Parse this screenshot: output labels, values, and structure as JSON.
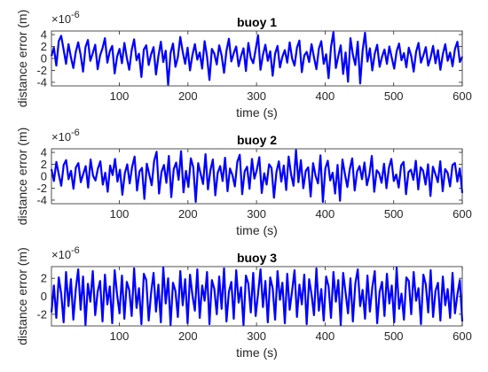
{
  "chart_data": [
    {
      "type": "line",
      "title": "buoy 1",
      "xlabel": "time (s)",
      "ylabel": "distance error (m)",
      "y_multiplier_label": "×10",
      "y_multiplier_exponent": "-6",
      "xlim": [
        1,
        600
      ],
      "ylim": [
        -4.6,
        4.6
      ],
      "xticks": [
        100,
        200,
        300,
        400,
        500,
        600
      ],
      "yticks": [
        -4,
        -2,
        0,
        2,
        4
      ],
      "xtick_labels": [
        "100",
        "200",
        "300",
        "400",
        "500",
        "600"
      ],
      "ytick_labels": [
        "-4",
        "-2",
        "0",
        "2",
        "4"
      ],
      "grid": false,
      "line_color": "#0000ff",
      "series": [
        {
          "values": [
            0.4,
            1.8,
            -1.2,
            2.9,
            3.8,
            1.5,
            -0.9,
            2.4,
            0.2,
            -1.6,
            1.1,
            2.7,
            0.6,
            -2.2,
            1.9,
            3.1,
            -0.4,
            0.9,
            2.3,
            -1.8,
            0.5,
            1.7,
            3.4,
            -0.7,
            1.2,
            2.1,
            -2.5,
            0.3,
            1.6,
            -0.8,
            2.6,
            0.1,
            -1.9,
            1.4,
            3.2,
            -0.3,
            0.8,
            -3.1,
            1.5,
            2.2,
            -1.1,
            0.7,
            1.9,
            -2.7,
            0.4,
            2.8,
            -0.6,
            1.3,
            -4.4,
            0.9,
            2.5,
            -1.4,
            0.2,
            3.6,
            1.1,
            -0.9,
            1.8,
            -2.0,
            0.6,
            2.4,
            -0.2,
            1.0,
            -1.7,
            2.9,
            0.3,
            -3.6,
            1.6,
            0.8,
            -1.0,
            2.2,
            0.5,
            -2.4,
            1.3,
            3.3,
            -0.5,
            0.9,
            2.0,
            -1.3,
            0.4,
            1.7,
            -2.1,
            2.6,
            0.1,
            -0.8,
            1.5,
            3.9,
            -1.9,
            0.6,
            2.3,
            -0.4,
            1.2,
            -2.9,
            0.8,
            2.1,
            -1.5,
            0.3,
            1.4,
            -0.7,
            2.7,
            0.0,
            -1.2,
            1.8,
            3.0,
            -2.3,
            0.5,
            1.1,
            -0.6,
            2.4,
            0.2,
            -1.8,
            1.6,
            2.9,
            -0.9,
            0.7,
            -3.3,
            1.9,
            4.4,
            -1.6,
            0.4,
            2.2,
            -2.6,
            1.0,
            -3.9,
            3.4,
            0.6,
            -1.1,
            2.8,
            -4.2,
            1.3,
            4.3,
            -0.5,
            1.7,
            -2.0,
            0.8,
            2.3,
            -1.4,
            0.3,
            1.5,
            -0.9,
            2.0,
            0.1,
            -1.7,
            1.2,
            2.5,
            -0.3,
            0.9,
            -1.5,
            1.8,
            0.4,
            -2.2,
            1.1,
            2.6,
            -0.7,
            0.5,
            1.9,
            -1.2,
            0.2,
            2.1,
            -0.8,
            1.4,
            -1.9,
            0.7,
            2.4,
            -0.4,
            1.0,
            -1.3,
            1.6,
            2.8,
            -0.6,
            0.3
          ]
        }
      ]
    },
    {
      "type": "line",
      "title": "buoy 2",
      "xlabel": "time (s)",
      "ylabel": "distance error (m)",
      "y_multiplier_label": "×10",
      "y_multiplier_exponent": "-6",
      "xlim": [
        1,
        600
      ],
      "ylim": [
        -4.6,
        4.6
      ],
      "xticks": [
        100,
        200,
        300,
        400,
        500,
        600
      ],
      "yticks": [
        -4,
        -2,
        0,
        2,
        4
      ],
      "xtick_labels": [
        "100",
        "200",
        "300",
        "400",
        "500",
        "600"
      ],
      "ytick_labels": [
        "-4",
        "-2",
        "0",
        "2",
        "4"
      ],
      "grid": false,
      "line_color": "#0000ff",
      "series": [
        {
          "values": [
            1.2,
            -0.8,
            2.4,
            0.3,
            -1.6,
            1.9,
            2.7,
            -0.5,
            0.9,
            -2.1,
            1.5,
            2.2,
            -1.0,
            0.4,
            1.7,
            -1.9,
            2.8,
            0.1,
            -0.7,
            1.3,
            2.5,
            -1.4,
            0.6,
            -2.6,
            1.8,
            0.2,
            2.9,
            -0.9,
            1.1,
            -3.1,
            0.5,
            2.0,
            -1.2,
            1.6,
            3.3,
            -2.4,
            0.8,
            1.4,
            -3.8,
            2.1,
            0.3,
            -1.5,
            2.6,
            4.1,
            -2.9,
            0.7,
            1.9,
            -1.1,
            3.4,
            -3.5,
            1.2,
            2.3,
            -0.6,
            4.2,
            -2.7,
            0.9,
            -1.8,
            3.0,
            1.5,
            -4.3,
            2.2,
            0.4,
            -1.3,
            3.7,
            -2.2,
            1.0,
            2.8,
            -3.2,
            0.6,
            1.7,
            -0.8,
            3.1,
            -2.5,
            1.3,
            0.2,
            -1.7,
            2.4,
            3.6,
            -3.0,
            0.8,
            1.6,
            -2.1,
            2.9,
            -0.4,
            1.1,
            3.2,
            -2.8,
            0.5,
            -1.4,
            2.0,
            1.4,
            -3.6,
            0.7,
            2.5,
            -0.9,
            1.8,
            -2.3,
            3.3,
            0.3,
            -1.6,
            4.4,
            -1.0,
            2.7,
            -2.0,
            0.9,
            1.5,
            -3.4,
            2.2,
            0.1,
            -1.2,
            3.5,
            -4.3,
            1.3,
            2.6,
            -0.7,
            0.6,
            -2.9,
            1.9,
            -4.1,
            2.8,
            0.4,
            -1.8,
            1.2,
            3.0,
            -2.4,
            0.8,
            1.7,
            -0.5,
            2.3,
            -1.5,
            0.2,
            3.4,
            -2.6,
            1.0,
            0.5,
            -1.1,
            2.1,
            -2.0,
            1.4,
            2.9,
            -0.8,
            0.3,
            -1.9,
            1.8,
            2.4,
            -3.0,
            0.7,
            1.1,
            -0.6,
            2.6,
            -2.2,
            1.5,
            0.9,
            -1.4,
            2.0,
            -3.3,
            1.6,
            0.4,
            -1.0,
            2.5,
            -2.5,
            1.2,
            0.6,
            -1.7,
            1.9,
            2.2,
            -0.9,
            1.3,
            -2.8
          ]
        }
      ]
    },
    {
      "type": "line",
      "title": "buoy 3",
      "xlabel": "time (s)",
      "ylabel": "distance error (m)",
      "y_multiplier_label": "×10",
      "y_multiplier_exponent": "-6",
      "xlim": [
        1,
        600
      ],
      "ylim": [
        -3.3,
        3.3
      ],
      "xticks": [
        100,
        200,
        300,
        400,
        500,
        600
      ],
      "yticks": [
        -2,
        0,
        2
      ],
      "xtick_labels": [
        "100",
        "200",
        "300",
        "400",
        "500",
        "600"
      ],
      "ytick_labels": [
        "-2",
        "0",
        "2"
      ],
      "grid": false,
      "line_color": "#0000ff",
      "series": [
        {
          "values": [
            -1.8,
            1.2,
            -2.4,
            2.1,
            0.3,
            -2.9,
            2.7,
            -1.1,
            1.9,
            -2.6,
            0.8,
            3.0,
            -1.5,
            2.2,
            -3.2,
            1.4,
            -0.6,
            2.8,
            -2.1,
            0.5,
            1.7,
            -2.8,
            2.4,
            -0.9,
            1.1,
            -3.0,
            2.9,
            0.2,
            -1.9,
            2.3,
            -2.5,
            1.6,
            0.7,
            -2.2,
            3.1,
            -1.3,
            0.9,
            -3.1,
            2.5,
            1.8,
            -2.7,
            0.4,
            2.6,
            -1.7,
            1.3,
            -2.9,
            3.2,
            -0.8,
            2.0,
            -3.2,
            1.5,
            0.6,
            -2.3,
            2.8,
            -1.0,
            1.9,
            -3.0,
            2.4,
            0.1,
            -1.6,
            3.0,
            -2.4,
            1.2,
            -0.5,
            2.7,
            -3.1,
            1.8,
            0.8,
            -2.0,
            2.2,
            -1.4,
            3.1,
            -2.8,
            0.5,
            1.6,
            -2.5,
            2.9,
            -0.7,
            1.0,
            -3.2,
            2.3,
            1.4,
            -1.8,
            2.6,
            -2.2,
            0.3,
            3.0,
            -1.2,
            1.7,
            -2.9,
            2.1,
            0.9,
            -2.6,
            2.8,
            -0.4,
            1.5,
            -3.0,
            2.5,
            -1.5,
            0.6,
            2.9,
            -2.3,
            1.3,
            -0.9,
            2.4,
            -3.1,
            1.9,
            0.2,
            -2.1,
            3.1,
            -1.6,
            0.8,
            -2.7,
            2.2,
            1.1,
            -2.4,
            2.7,
            -0.6,
            1.8,
            -3.2,
            2.6,
            0.4,
            -1.9,
            2.0,
            -2.8,
            1.4,
            3.0,
            -1.1,
            0.7,
            -2.5,
            2.3,
            -1.7,
            1.0,
            2.8,
            -3.0,
            0.5,
            1.6,
            -2.2,
            2.5,
            -0.8,
            1.2,
            -2.9,
            3.2,
            -1.4,
            0.3,
            -2.6,
            2.1,
            1.7,
            -2.0,
            2.7,
            -0.5,
            0.9,
            -3.1,
            2.4,
            1.3,
            -1.8,
            2.9,
            -2.3,
            0.6,
            1.5,
            -2.7,
            2.2,
            -1.0,
            0.8,
            -2.4,
            2.6,
            -1.9,
            0.2,
            1.8,
            -2.8
          ]
        }
      ]
    }
  ]
}
